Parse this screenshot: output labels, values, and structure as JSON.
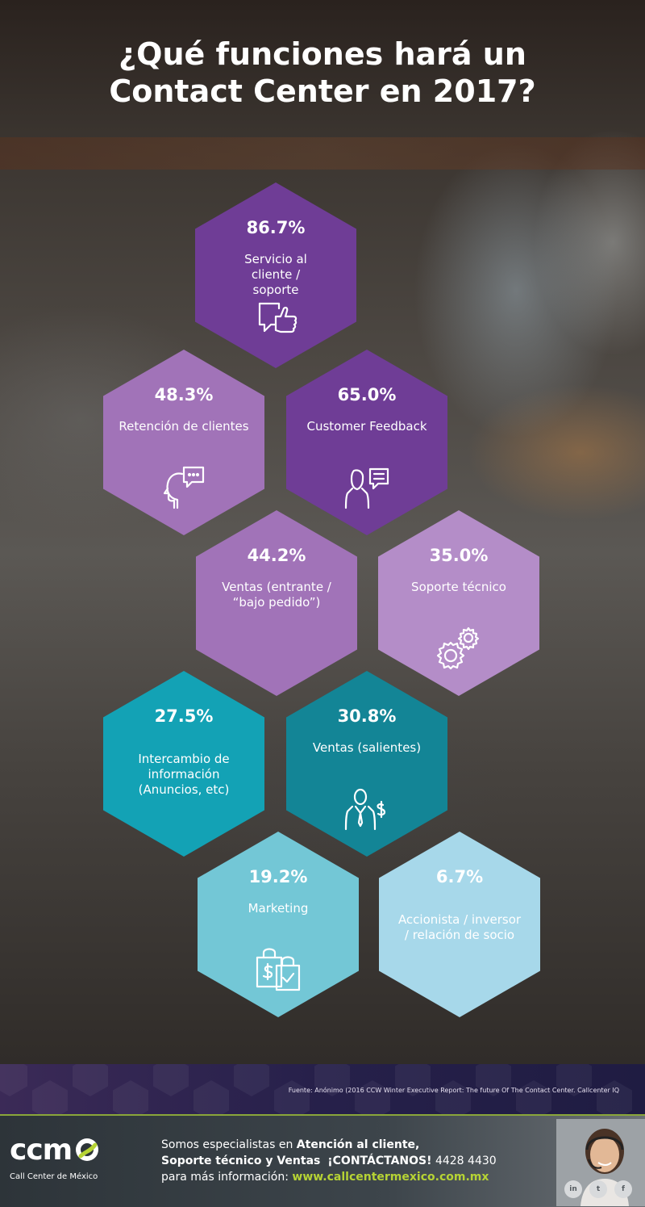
{
  "title": {
    "line1": "¿Qué funciones hará un",
    "line2": "Contact Center en 2017?"
  },
  "items": [
    {
      "pct": "86.7%",
      "label": "Servicio al cliente / soporte",
      "icon": "thumbs-up-chat-icon",
      "color": "#6f3d96"
    },
    {
      "pct": "48.3%",
      "label": "Retención de clientes",
      "icon": "head-speech-icon",
      "color": "#a173b8"
    },
    {
      "pct": "65.0%",
      "label": "Customer Feedback",
      "icon": "person-message-icon",
      "color": "#6f3d96"
    },
    {
      "pct": "44.2%",
      "label": "Ventas (entrante / “bajo pedido”)",
      "icon": "",
      "color": "#a173b8"
    },
    {
      "pct": "35.0%",
      "label": "Soporte técnico",
      "icon": "gears-icon",
      "color": "#b48dc8"
    },
    {
      "pct": "27.5%",
      "label": "Intercambio de información (Anuncios, etc)",
      "icon": "",
      "color": "#13a2b5"
    },
    {
      "pct": "30.8%",
      "label": "Ventas (salientes)",
      "icon": "salesman-dollar-icon",
      "color": "#138596"
    },
    {
      "pct": "19.2%",
      "label": "Marketing",
      "icon": "shopping-bags-icon",
      "color": "#73c7d6"
    },
    {
      "pct": "6.7%",
      "label": "Accionista / inversor / relación de socio",
      "icon": "",
      "color": "#a7d8ea"
    }
  ],
  "source": "Fuente: Anónimo (2016 CCW Winter Executive Report: The future Of The Contact Center. Callcenter IQ",
  "footer": {
    "logo": "ccm",
    "logo_sub": "Call Center de México",
    "line1_a": "Somos especialistas en ",
    "line1_b": "Atención al cliente,",
    "line2_a": "Soporte técnico y Ventas",
    "line2_b": "¡CONTÁCTANOS!",
    "line2_c": "4428 4430",
    "line3_a": "para más información: ",
    "line3_b": "www.callcentermexico.com.mx",
    "social": [
      "in",
      "t",
      "f"
    ],
    "accent": "#b6d334"
  }
}
